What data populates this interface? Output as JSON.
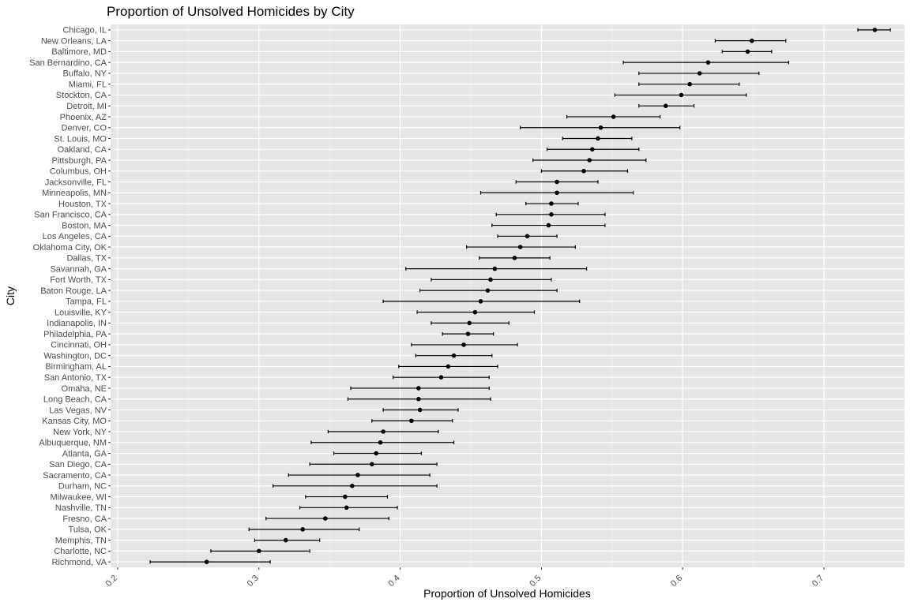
{
  "chart_data": {
    "type": "scatter",
    "title": "Proportion of Unsolved Homicides by City",
    "xlabel": "Proportion of Unsolved Homicides",
    "ylabel": "City",
    "xlim": [
      0.195,
      0.757
    ],
    "xticks": [
      0.2,
      0.3,
      0.4,
      0.5,
      0.6,
      0.7
    ],
    "xtick_labels": [
      "0.2",
      "0.3",
      "0.4",
      "0.5",
      "0.6",
      "0.7"
    ],
    "grid": true,
    "background": "#e5e5e5",
    "point_color": "#000000",
    "errorbar_color": "#000000",
    "points": [
      {
        "city": "Chicago, IL",
        "estimate": 0.736,
        "low": 0.724,
        "high": 0.747
      },
      {
        "city": "New Orleans, LA",
        "estimate": 0.649,
        "low": 0.623,
        "high": 0.673
      },
      {
        "city": "Baltimore, MD",
        "estimate": 0.646,
        "low": 0.628,
        "high": 0.663
      },
      {
        "city": "San Bernardino, CA",
        "estimate": 0.618,
        "low": 0.558,
        "high": 0.675
      },
      {
        "city": "Buffalo, NY",
        "estimate": 0.612,
        "low": 0.569,
        "high": 0.654
      },
      {
        "city": "Miami, FL",
        "estimate": 0.605,
        "low": 0.569,
        "high": 0.64
      },
      {
        "city": "Stockton, CA",
        "estimate": 0.599,
        "low": 0.552,
        "high": 0.645
      },
      {
        "city": "Detroit, MI",
        "estimate": 0.588,
        "low": 0.569,
        "high": 0.608
      },
      {
        "city": "Phoenix, AZ",
        "estimate": 0.551,
        "low": 0.518,
        "high": 0.584
      },
      {
        "city": "Denver, CO",
        "estimate": 0.542,
        "low": 0.485,
        "high": 0.598
      },
      {
        "city": "St. Louis, MO",
        "estimate": 0.54,
        "low": 0.515,
        "high": 0.564
      },
      {
        "city": "Oakland, CA",
        "estimate": 0.536,
        "low": 0.504,
        "high": 0.569
      },
      {
        "city": "Pittsburgh, PA",
        "estimate": 0.534,
        "low": 0.494,
        "high": 0.574
      },
      {
        "city": "Columbus, OH",
        "estimate": 0.53,
        "low": 0.5,
        "high": 0.561
      },
      {
        "city": "Jacksonville, FL",
        "estimate": 0.511,
        "low": 0.482,
        "high": 0.54
      },
      {
        "city": "Minneapolis, MN",
        "estimate": 0.511,
        "low": 0.457,
        "high": 0.565
      },
      {
        "city": "Houston, TX",
        "estimate": 0.507,
        "low": 0.489,
        "high": 0.526
      },
      {
        "city": "San Francisco, CA",
        "estimate": 0.507,
        "low": 0.468,
        "high": 0.545
      },
      {
        "city": "Boston, MA",
        "estimate": 0.505,
        "low": 0.465,
        "high": 0.545
      },
      {
        "city": "Los Angeles, CA",
        "estimate": 0.49,
        "low": 0.469,
        "high": 0.511
      },
      {
        "city": "Oklahoma City, OK",
        "estimate": 0.485,
        "low": 0.447,
        "high": 0.524
      },
      {
        "city": "Dallas, TX",
        "estimate": 0.481,
        "low": 0.456,
        "high": 0.506
      },
      {
        "city": "Savannah, GA",
        "estimate": 0.467,
        "low": 0.404,
        "high": 0.532
      },
      {
        "city": "Fort Worth, TX",
        "estimate": 0.464,
        "low": 0.422,
        "high": 0.507
      },
      {
        "city": "Baton Rouge, LA",
        "estimate": 0.462,
        "low": 0.414,
        "high": 0.511
      },
      {
        "city": "Tampa, FL",
        "estimate": 0.457,
        "low": 0.388,
        "high": 0.527
      },
      {
        "city": "Louisville, KY",
        "estimate": 0.453,
        "low": 0.412,
        "high": 0.495
      },
      {
        "city": "Indianapolis, IN",
        "estimate": 0.449,
        "low": 0.422,
        "high": 0.477
      },
      {
        "city": "Philadelphia, PA",
        "estimate": 0.448,
        "low": 0.43,
        "high": 0.466
      },
      {
        "city": "Cincinnati, OH",
        "estimate": 0.445,
        "low": 0.408,
        "high": 0.483
      },
      {
        "city": "Washington, DC",
        "estimate": 0.438,
        "low": 0.411,
        "high": 0.465
      },
      {
        "city": "Birmingham, AL",
        "estimate": 0.434,
        "low": 0.399,
        "high": 0.469
      },
      {
        "city": "San Antonio, TX",
        "estimate": 0.429,
        "low": 0.395,
        "high": 0.463
      },
      {
        "city": "Omaha, NE",
        "estimate": 0.413,
        "low": 0.365,
        "high": 0.463
      },
      {
        "city": "Long Beach, CA",
        "estimate": 0.413,
        "low": 0.363,
        "high": 0.464
      },
      {
        "city": "Las Vegas, NV",
        "estimate": 0.414,
        "low": 0.388,
        "high": 0.441
      },
      {
        "city": "Kansas City, MO",
        "estimate": 0.408,
        "low": 0.38,
        "high": 0.437
      },
      {
        "city": "New York, NY",
        "estimate": 0.388,
        "low": 0.349,
        "high": 0.427
      },
      {
        "city": "Albuquerque, NM",
        "estimate": 0.386,
        "low": 0.337,
        "high": 0.438
      },
      {
        "city": "Atlanta, GA",
        "estimate": 0.383,
        "low": 0.353,
        "high": 0.415
      },
      {
        "city": "San Diego, CA",
        "estimate": 0.38,
        "low": 0.336,
        "high": 0.426
      },
      {
        "city": "Sacramento, CA",
        "estimate": 0.37,
        "low": 0.321,
        "high": 0.421
      },
      {
        "city": "Durham, NC",
        "estimate": 0.366,
        "low": 0.31,
        "high": 0.426
      },
      {
        "city": "Milwaukee, WI",
        "estimate": 0.361,
        "low": 0.333,
        "high": 0.391
      },
      {
        "city": "Nashville, TN",
        "estimate": 0.362,
        "low": 0.329,
        "high": 0.398
      },
      {
        "city": "Fresno, CA",
        "estimate": 0.347,
        "low": 0.305,
        "high": 0.392
      },
      {
        "city": "Tulsa, OK",
        "estimate": 0.331,
        "low": 0.293,
        "high": 0.371
      },
      {
        "city": "Memphis, TN",
        "estimate": 0.319,
        "low": 0.297,
        "high": 0.343
      },
      {
        "city": "Charlotte, NC",
        "estimate": 0.3,
        "low": 0.266,
        "high": 0.336
      },
      {
        "city": "Richmond, VA",
        "estimate": 0.263,
        "low": 0.223,
        "high": 0.308
      }
    ]
  }
}
